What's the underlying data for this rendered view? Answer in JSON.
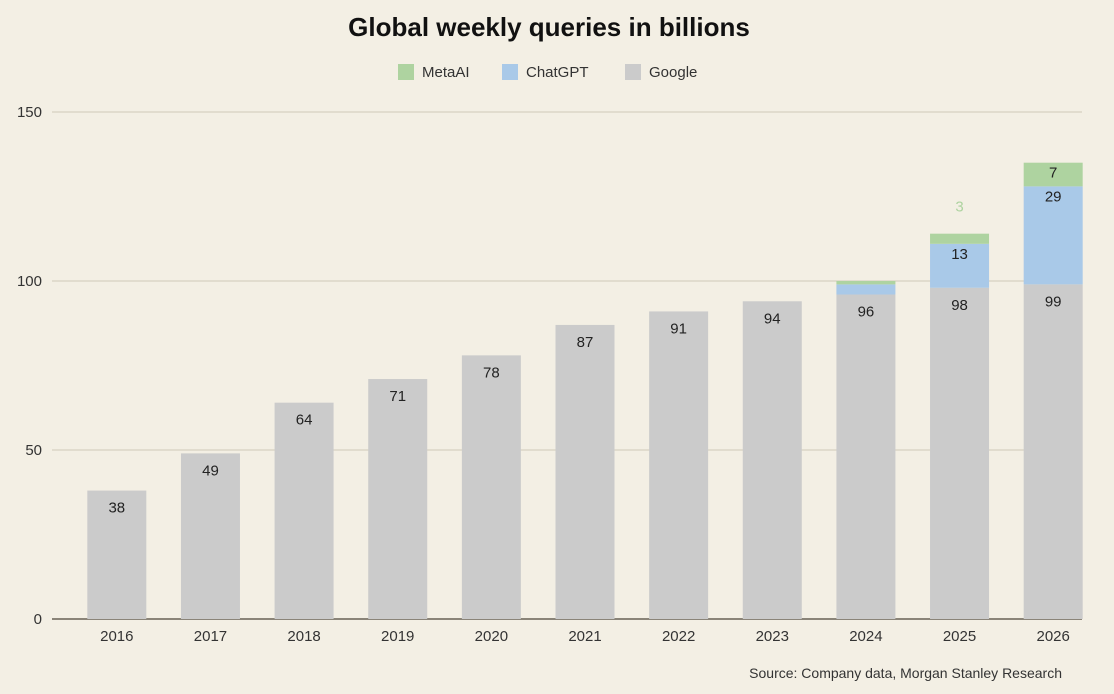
{
  "chart_data": {
    "type": "bar",
    "stacked": true,
    "title": "Global weekly queries in billions",
    "categories": [
      "2016",
      "2017",
      "2018",
      "2019",
      "2020",
      "2021",
      "2022",
      "2023",
      "2024",
      "2025",
      "2026"
    ],
    "series": [
      {
        "name": "Google",
        "color": "#cbcbcb",
        "values": [
          38,
          49,
          64,
          71,
          78,
          87,
          91,
          94,
          96,
          98,
          99
        ],
        "labels": [
          "38",
          "49",
          "64",
          "71",
          "78",
          "87",
          "91",
          "94",
          "96",
          "98",
          "99"
        ]
      },
      {
        "name": "ChatGPT",
        "color": "#a9c9e8",
        "values": [
          0,
          0,
          0,
          0,
          0,
          0,
          0,
          0,
          3,
          13,
          29
        ],
        "labels": [
          "",
          "",
          "",
          "",
          "",
          "",
          "",
          "",
          "",
          "13",
          "29"
        ]
      },
      {
        "name": "MetaAI",
        "color": "#aed3a0",
        "values": [
          0,
          0,
          0,
          0,
          0,
          0,
          0,
          0,
          1,
          3,
          7
        ],
        "labels": [
          "",
          "",
          "",
          "",
          "",
          "",
          "",
          "",
          "",
          "3",
          "7"
        ]
      }
    ],
    "legend_order": [
      "MetaAI",
      "ChatGPT",
      "Google"
    ],
    "legend_position": "top-center",
    "y_ticks": [
      "0",
      "50",
      "100",
      "150"
    ],
    "ylim": [
      0,
      150
    ],
    "grid": true,
    "source": "Source: Company data, Morgan Stanley Research"
  },
  "colors": {
    "background": "#f3efe4",
    "grid": "#cfc9b9",
    "axis": "#8a8478",
    "text": "#333333",
    "outside_label": "#aed3a0"
  }
}
